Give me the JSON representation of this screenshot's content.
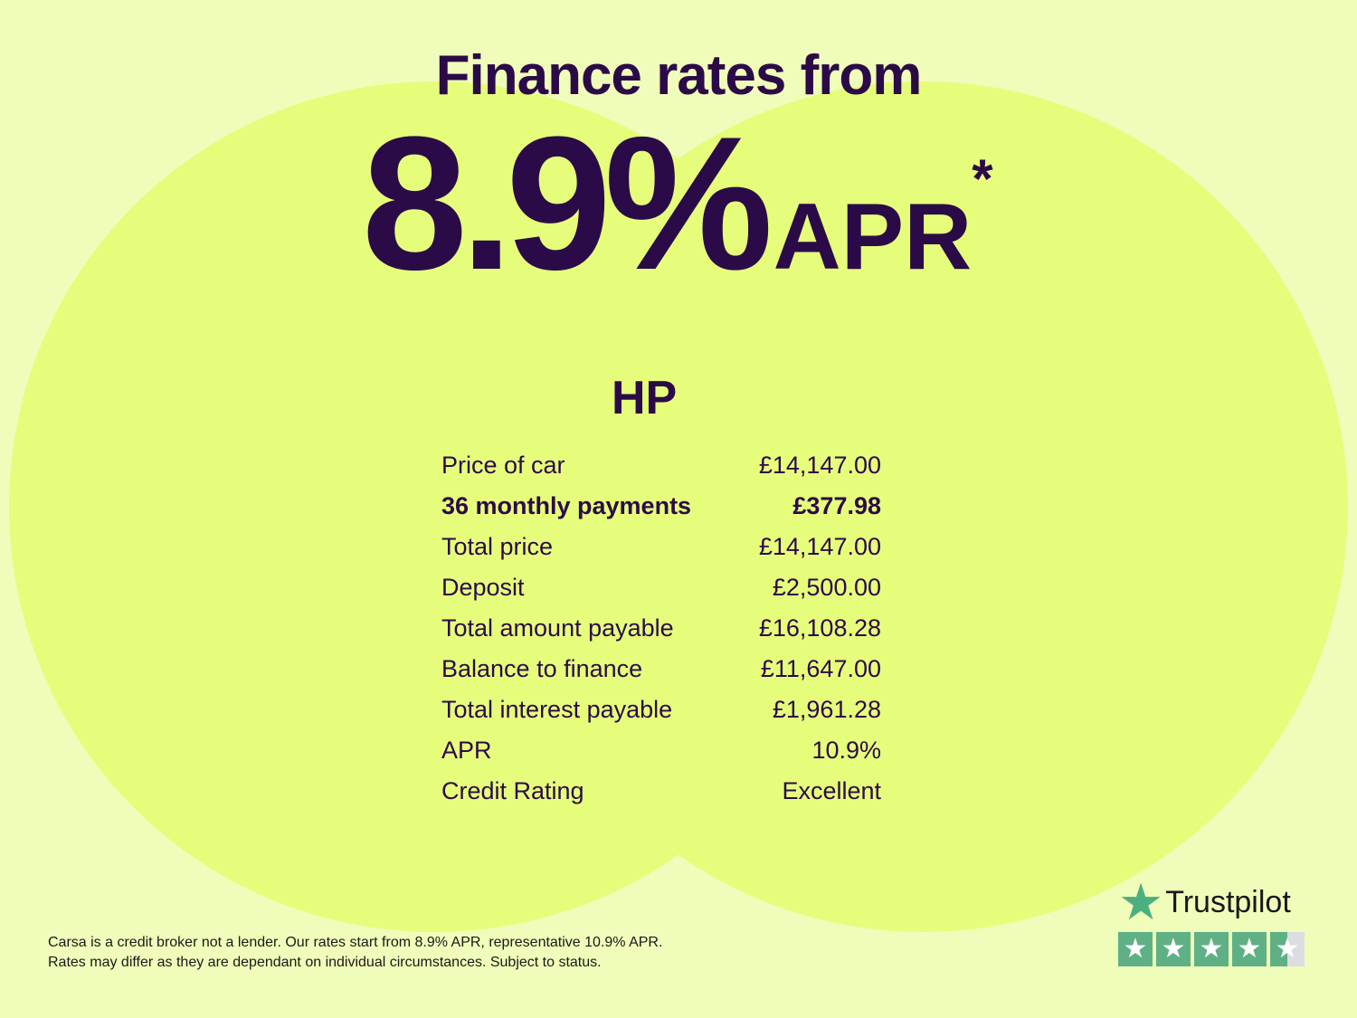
{
  "headline": {
    "title": "Finance rates from",
    "rate": "8.9%",
    "apr": "APR",
    "asterisk": "*"
  },
  "section_title": "HP",
  "rows": [
    {
      "label": "Price of car",
      "value": "£14,147.00",
      "bold": false
    },
    {
      "label": "36 monthly payments",
      "value": "£377.98",
      "bold": true
    },
    {
      "label": "Total price",
      "value": "£14,147.00",
      "bold": false
    },
    {
      "label": "Deposit",
      "value": "£2,500.00",
      "bold": false
    },
    {
      "label": "Total amount payable",
      "value": "£16,108.28",
      "bold": false
    },
    {
      "label": "Balance to finance",
      "value": "£11,647.00",
      "bold": false
    },
    {
      "label": "Total interest payable",
      "value": "£1,961.28",
      "bold": false
    },
    {
      "label": "APR",
      "value": "10.9%",
      "bold": false
    },
    {
      "label": "Credit Rating",
      "value": "Excellent",
      "bold": false
    }
  ],
  "disclaimer": {
    "line1": "Carsa is a credit broker not a lender. Our rates start from 8.9% APR, representative 10.9% APR.",
    "line2": "Rates may differ as they are dependant on individual circumstances. Subject to status."
  },
  "trustpilot": {
    "name": "Trustpilot",
    "rating": 4.5,
    "max": 5,
    "color": "#5fb085"
  },
  "colors": {
    "background": "#f0fcb9",
    "circles": "#e6fd7c",
    "text": "#2b0b47"
  }
}
